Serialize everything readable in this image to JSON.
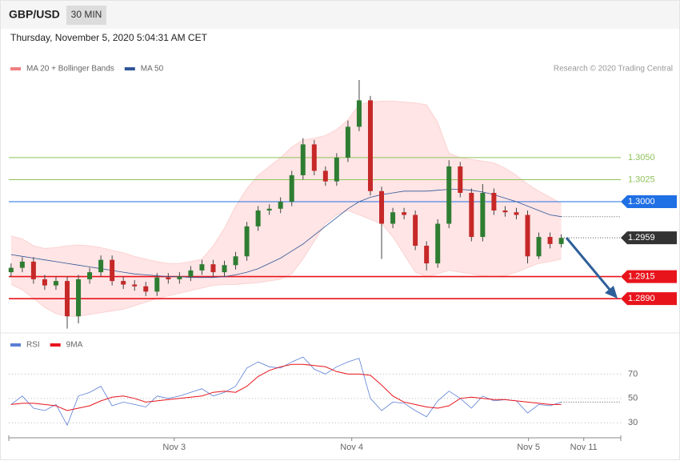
{
  "header": {
    "symbol": "GBP/USD",
    "interval": "30 MIN",
    "timestamp": "Thursday, November 5, 2020 5:04:31 AM CET",
    "credit": "Research © 2020 Trading Central"
  },
  "chart_data": [
    {
      "type": "candlestick",
      "up_color": "#2e7d32",
      "down_color": "#c62828",
      "ylim": [
        1.2852,
        1.3138
      ],
      "open": [
        1.292,
        1.2925,
        1.2932,
        1.2912,
        1.2905,
        1.291,
        1.287,
        1.2912,
        1.292,
        1.2934,
        1.291,
        1.2906,
        1.2904,
        1.2898,
        1.2914,
        1.2912,
        1.2915,
        1.2922,
        1.2929,
        1.292,
        1.2928,
        1.2938,
        1.2972,
        1.299,
        1.2992,
        1.3,
        1.303,
        1.3065,
        1.3035,
        1.3023,
        1.305,
        1.3085,
        1.3115,
        1.3012,
        1.2975,
        1.2988,
        1.2985,
        1.295,
        1.293,
        1.2975,
        1.304,
        1.301,
        1.296,
        1.301,
        1.299,
        1.2988,
        1.2985,
        1.2938,
        1.296,
        1.2952
      ],
      "high": [
        1.293,
        1.2937,
        1.2937,
        1.2917,
        1.2915,
        1.2915,
        1.2917,
        1.2925,
        1.2939,
        1.2939,
        1.2915,
        1.2911,
        1.2909,
        1.2919,
        1.2919,
        1.292,
        1.2927,
        1.2934,
        1.2934,
        1.2933,
        1.2943,
        1.2977,
        1.2995,
        1.2997,
        1.3005,
        1.3035,
        1.3072,
        1.307,
        1.304,
        1.3055,
        1.3092,
        1.3138,
        1.312,
        1.3017,
        1.2993,
        1.2993,
        1.299,
        1.2955,
        1.298,
        1.3047,
        1.3045,
        1.3015,
        1.302,
        1.3015,
        1.2995,
        1.2993,
        1.299,
        1.2965,
        1.2965,
        1.2963
      ],
      "low": [
        1.2915,
        1.292,
        1.2907,
        1.29,
        1.29,
        1.2856,
        1.2862,
        1.2907,
        1.2915,
        1.2905,
        1.2901,
        1.2899,
        1.2893,
        1.2893,
        1.2907,
        1.2907,
        1.291,
        1.2917,
        1.2915,
        1.2915,
        1.2923,
        1.2933,
        1.2967,
        1.2985,
        1.2987,
        1.2995,
        1.3025,
        1.303,
        1.3018,
        1.3018,
        1.3045,
        1.308,
        1.3007,
        1.2935,
        1.297,
        1.298,
        1.2945,
        1.2922,
        1.2925,
        1.297,
        1.3005,
        1.2955,
        1.2955,
        1.2985,
        1.2983,
        1.298,
        1.293,
        1.2935,
        1.2947,
        1.2948
      ],
      "close": [
        1.2925,
        1.2932,
        1.2912,
        1.2905,
        1.291,
        1.287,
        1.2912,
        1.292,
        1.2934,
        1.291,
        1.2906,
        1.2904,
        1.2898,
        1.2914,
        1.2912,
        1.2915,
        1.2922,
        1.2929,
        1.292,
        1.2928,
        1.2938,
        1.2972,
        1.299,
        1.2992,
        1.3,
        1.303,
        1.3065,
        1.3035,
        1.3023,
        1.305,
        1.3085,
        1.3115,
        1.3012,
        1.2975,
        1.2988,
        1.2985,
        1.295,
        1.293,
        1.2975,
        1.304,
        1.301,
        1.296,
        1.301,
        1.299,
        1.2988,
        1.2985,
        1.2938,
        1.296,
        1.2952,
        1.2959
      ],
      "series": [
        {
          "name": "MA 20 + Bollinger Bands",
          "color": "#f08080",
          "band_color": "#ffdede",
          "upper": [
            1.2961,
            1.2958,
            1.295,
            1.2947,
            1.2948,
            1.295,
            1.2951,
            1.295,
            1.2948,
            1.2945,
            1.2942,
            1.2938,
            1.2935,
            1.2932,
            1.293,
            1.293,
            1.2932,
            1.2935,
            1.295,
            1.297,
            1.2995,
            1.3015,
            1.303,
            1.304,
            1.305,
            1.3062,
            1.307,
            1.3072,
            1.3075,
            1.3082,
            1.3093,
            1.311,
            1.3113,
            1.3114,
            1.3114,
            1.3113,
            1.3112,
            1.311,
            1.309,
            1.3055,
            1.305,
            1.3048,
            1.3046,
            1.3044,
            1.3038,
            1.303,
            1.302,
            1.3012,
            1.3005,
            1.2998
          ],
          "lower": [
            1.2906,
            1.29,
            1.289,
            1.288,
            1.2873,
            1.287,
            1.287,
            1.2872,
            1.2874,
            1.2876,
            1.2878,
            1.2882,
            1.2886,
            1.289,
            1.2893,
            1.2896,
            1.2899,
            1.2902,
            1.2905,
            1.2906,
            1.2906,
            1.2907,
            1.2908,
            1.291,
            1.2912,
            1.2918,
            1.2935,
            1.2955,
            1.2975,
            1.2985,
            1.299,
            1.2985,
            1.298,
            1.2975,
            1.296,
            1.294,
            1.292,
            1.2915,
            1.2918,
            1.2922,
            1.292,
            1.2918,
            1.2916,
            1.2915,
            1.2916,
            1.292,
            1.2925,
            1.293,
            1.2932,
            1.2935
          ]
        },
        {
          "name": "MA 50",
          "color": "#2f5597",
          "values": [
            1.294,
            1.2938,
            1.2936,
            1.2934,
            1.2932,
            1.293,
            1.2928,
            1.2926,
            1.2924,
            1.2922,
            1.292,
            1.2918,
            1.2917,
            1.2916,
            1.2915,
            1.2915,
            1.2914,
            1.2914,
            1.2914,
            1.2915,
            1.2917,
            1.292,
            1.2924,
            1.293,
            1.2936,
            1.2944,
            1.2952,
            1.2962,
            1.2972,
            1.2982,
            1.2992,
            1.3,
            1.3005,
            1.3008,
            1.301,
            1.3012,
            1.3012,
            1.3012,
            1.3013,
            1.3014,
            1.3014,
            1.3013,
            1.3011,
            1.3008,
            1.3004,
            1.3,
            1.2995,
            1.299,
            1.2985,
            1.2983
          ]
        }
      ],
      "levels": [
        {
          "value": 1.305,
          "label": "1.3050",
          "color": "#8fc25a",
          "boxed": false,
          "line": "solid"
        },
        {
          "value": 1.3025,
          "label": "1.3025",
          "color": "#8fc25a",
          "boxed": false,
          "line": "solid"
        },
        {
          "value": 1.3,
          "label": "1.3000",
          "color": "#1f6fe5",
          "boxed": true,
          "line": "solid"
        },
        {
          "value": 1.2959,
          "label": "1.2959",
          "color": "#333333",
          "boxed": true,
          "line": "dotted"
        },
        {
          "value": 1.2915,
          "label": "1.2915",
          "color": "#e8141c",
          "boxed": true,
          "line": "solid"
        },
        {
          "value": 1.289,
          "label": "1.2890",
          "color": "#e8141c",
          "boxed": true,
          "line": "solid"
        }
      ]
    },
    {
      "type": "line",
      "ylim": [
        19,
        88
      ],
      "yticks": [
        30,
        50,
        70
      ],
      "grid": true,
      "xlim": [
        -0.2,
        54.3
      ],
      "xticks": [
        {
          "value": 14.53,
          "label": "Nov 3"
        },
        {
          "value": 30.34,
          "label": "Nov 4"
        },
        {
          "value": 46.08,
          "label": "Nov 5"
        },
        {
          "value": 51.0,
          "label": "Nov 11"
        }
      ],
      "series": [
        {
          "name": "RSI",
          "color": "#5b7fd6",
          "values": [
            45,
            52,
            42,
            40,
            45,
            28,
            52,
            55,
            60,
            44,
            47,
            45,
            43,
            52,
            50,
            52,
            55,
            58,
            52,
            55,
            60,
            75,
            80,
            76,
            75,
            80,
            84,
            74,
            70,
            76,
            80,
            83,
            50,
            40,
            47,
            46,
            40,
            35,
            48,
            56,
            50,
            42,
            52,
            48,
            49,
            48,
            38,
            45,
            44,
            47
          ]
        },
        {
          "name": "9MA",
          "color": "#e8141c",
          "values": [
            45,
            46,
            46,
            45,
            44,
            40,
            42,
            44,
            48,
            51,
            52,
            50,
            47,
            48,
            49,
            50,
            51,
            52,
            55,
            56,
            55,
            60,
            68,
            73,
            76,
            78,
            78,
            77,
            76,
            72,
            70,
            70,
            69,
            61,
            52,
            47,
            45,
            43,
            42,
            44,
            50,
            51,
            50,
            49,
            49,
            48,
            47,
            46,
            45,
            45
          ]
        }
      ]
    }
  ]
}
